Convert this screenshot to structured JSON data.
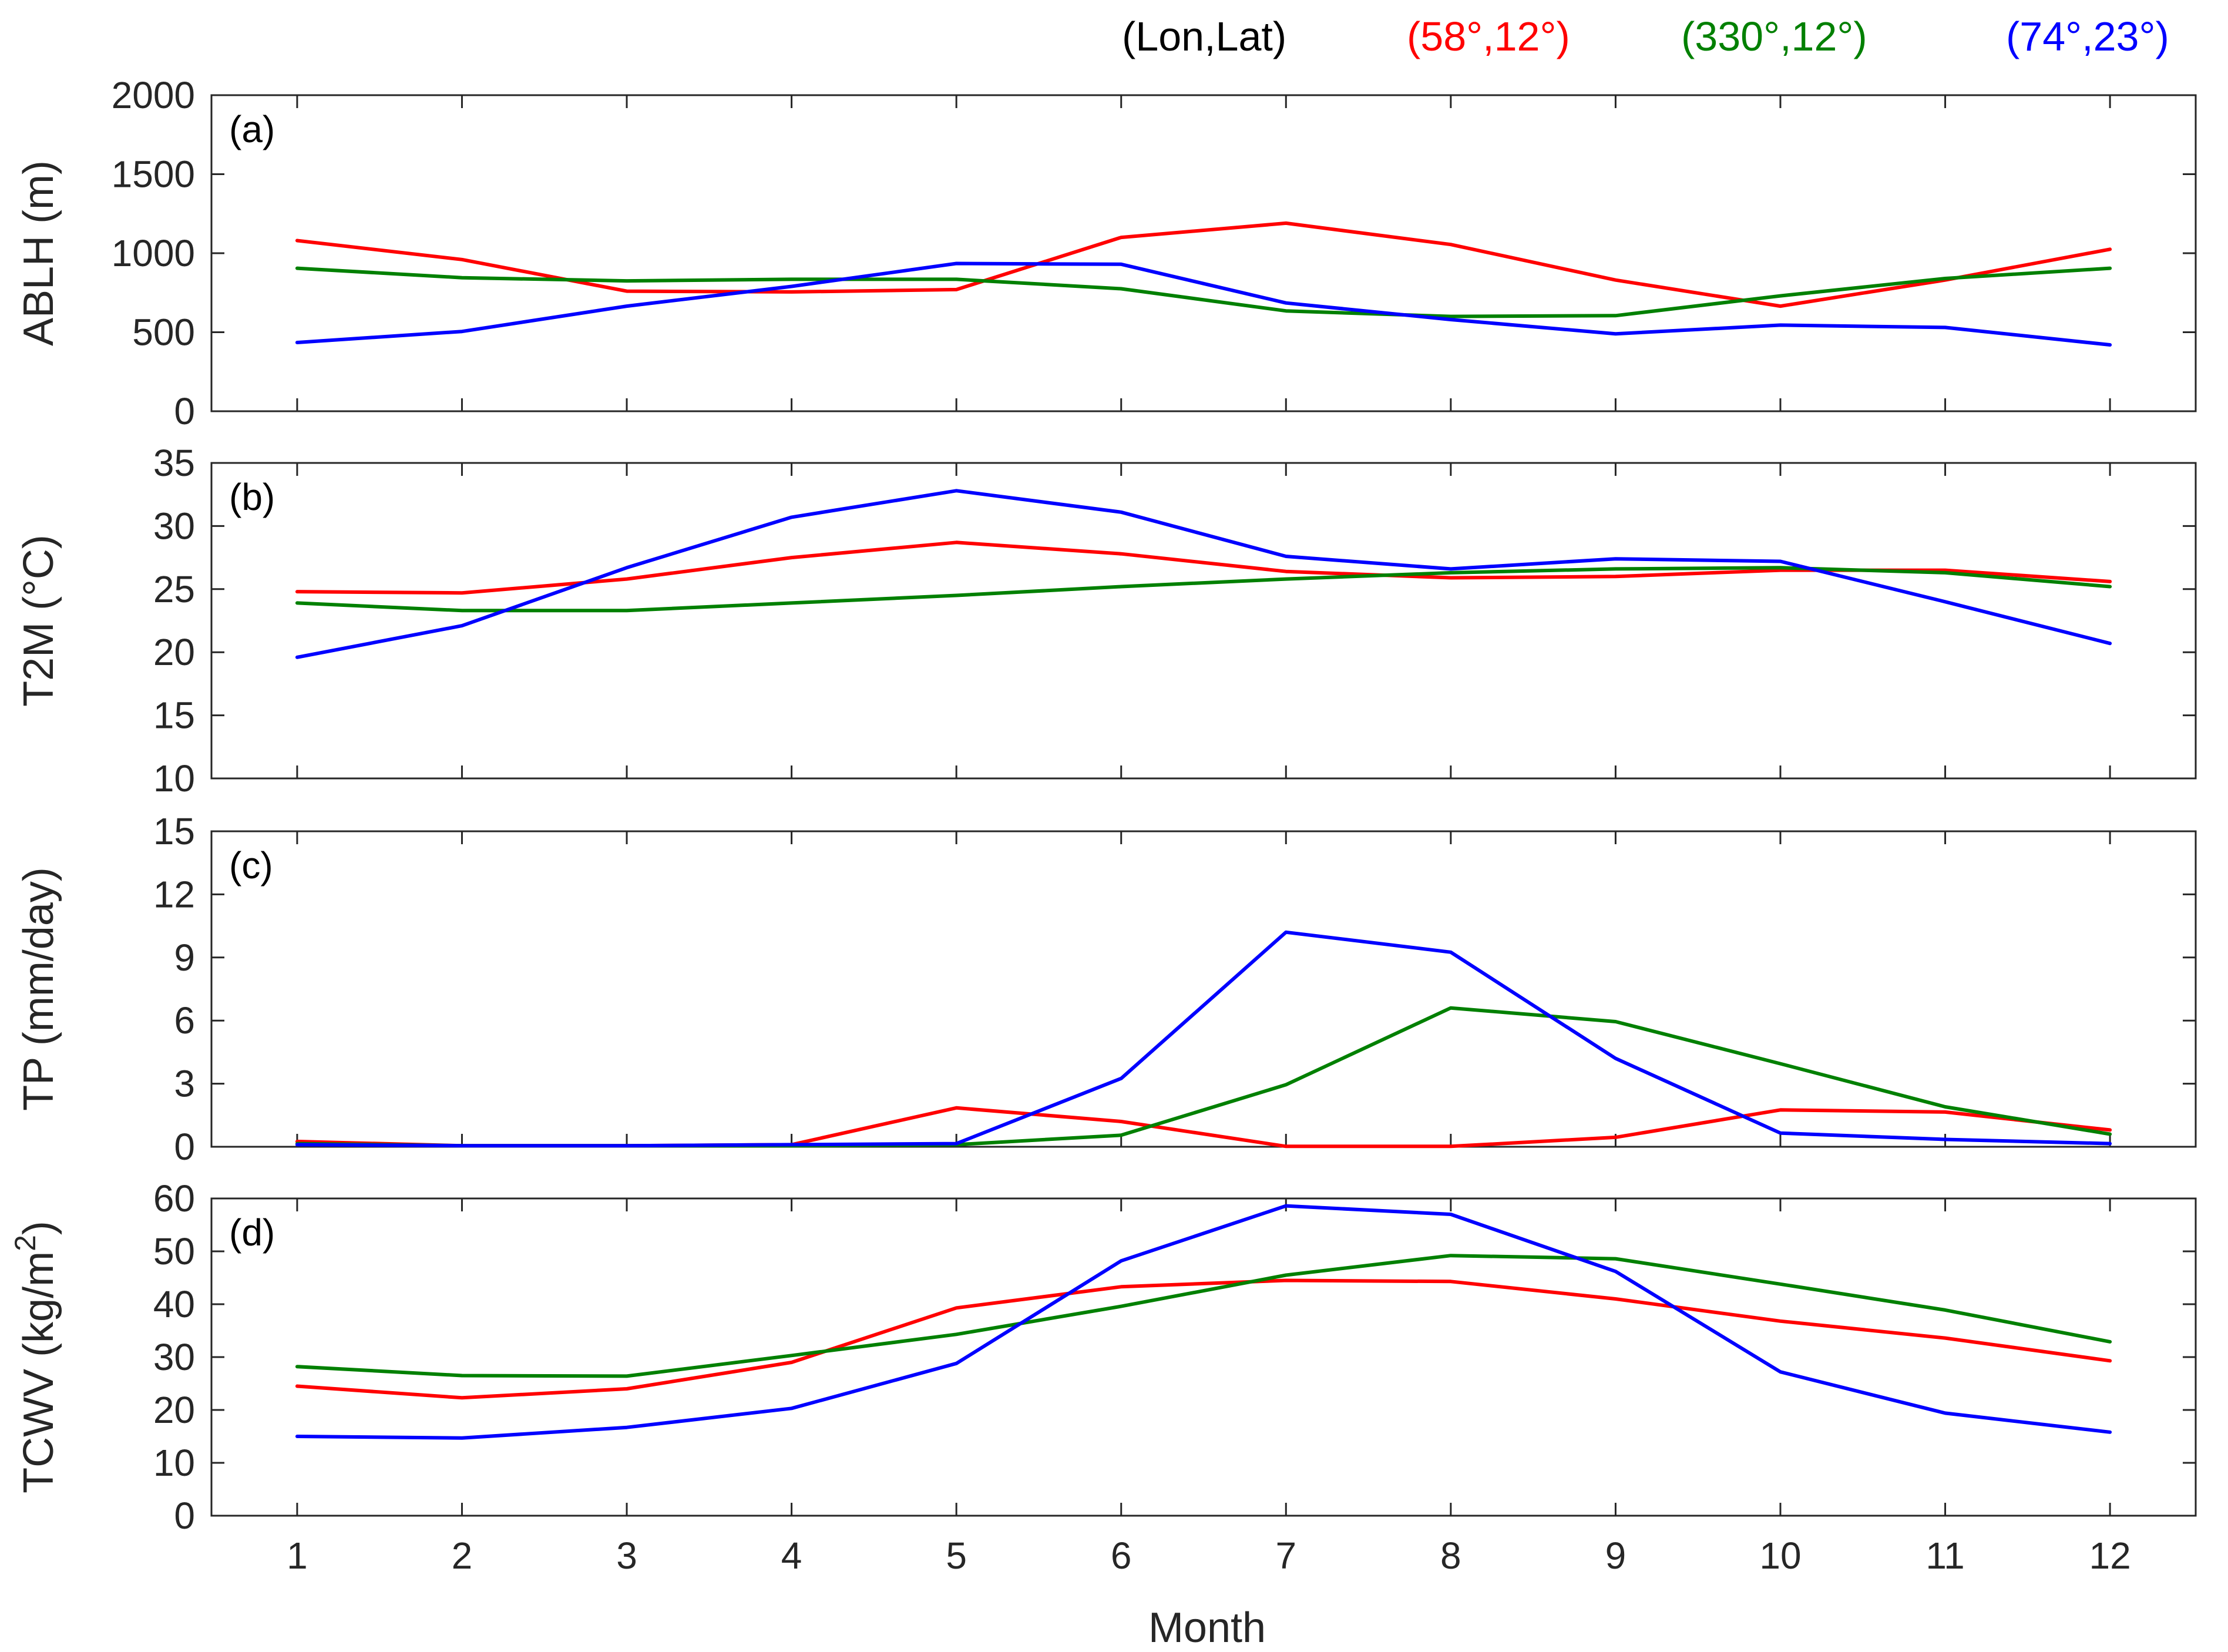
{
  "legend": {
    "header": "(Lon,Lat)",
    "entries": [
      {
        "label": "(58°,12°)",
        "color": "#ff0000"
      },
      {
        "label": "(330°,12°)",
        "color": "#008000"
      },
      {
        "label": "(74°,23°)",
        "color": "#0000ff"
      }
    ]
  },
  "xlabel": "Month",
  "chart_data": [
    {
      "type": "line",
      "tag": "(a)",
      "ylabel": "ABLH (m)",
      "x": [
        1,
        2,
        3,
        4,
        5,
        6,
        7,
        8,
        9,
        10,
        11,
        12
      ],
      "ylim": [
        0,
        2000
      ],
      "yticks": [
        "0",
        "500",
        "1000",
        "1500",
        "2000"
      ],
      "series": [
        {
          "name": "(58°,12°)",
          "color": "#ff0000",
          "values": [
            1080,
            960,
            760,
            755,
            770,
            1100,
            1190,
            1055,
            830,
            665,
            830,
            1025
          ]
        },
        {
          "name": "(330°,12°)",
          "color": "#008000",
          "values": [
            905,
            845,
            825,
            835,
            835,
            775,
            635,
            600,
            605,
            730,
            840,
            905
          ]
        },
        {
          "name": "(74°,23°)",
          "color": "#0000ff",
          "values": [
            435,
            505,
            665,
            790,
            935,
            930,
            685,
            580,
            490,
            545,
            530,
            420
          ]
        }
      ]
    },
    {
      "type": "line",
      "tag": "(b)",
      "ylabel": "T2M (°C)",
      "x": [
        1,
        2,
        3,
        4,
        5,
        6,
        7,
        8,
        9,
        10,
        11,
        12
      ],
      "ylim": [
        10,
        35
      ],
      "yticks": [
        "10",
        "15",
        "20",
        "25",
        "30",
        "35"
      ],
      "series": [
        {
          "name": "(58°,12°)",
          "color": "#ff0000",
          "values": [
            24.8,
            24.7,
            25.8,
            27.5,
            28.7,
            27.8,
            26.4,
            25.9,
            26.0,
            26.5,
            26.5,
            25.6
          ]
        },
        {
          "name": "(330°,12°)",
          "color": "#008000",
          "values": [
            23.9,
            23.3,
            23.3,
            23.9,
            24.5,
            25.2,
            25.8,
            26.3,
            26.6,
            26.7,
            26.3,
            25.2
          ]
        },
        {
          "name": "(74°,23°)",
          "color": "#0000ff",
          "values": [
            19.6,
            22.1,
            26.7,
            30.7,
            32.8,
            31.1,
            27.6,
            26.6,
            27.4,
            27.2,
            24.0,
            20.7
          ]
        }
      ]
    },
    {
      "type": "line",
      "tag": "(c)",
      "ylabel": "TP (mm/day)",
      "x": [
        1,
        2,
        3,
        4,
        5,
        6,
        7,
        8,
        9,
        10,
        11,
        12
      ],
      "ylim": [
        0,
        15
      ],
      "yticks": [
        "0",
        "3",
        "6",
        "9",
        "12",
        "15"
      ],
      "series": [
        {
          "name": "(58°,12°)",
          "color": "#ff0000",
          "values": [
            0.25,
            0.05,
            0.05,
            0.1,
            1.85,
            1.2,
            0.02,
            0.02,
            0.45,
            1.75,
            1.65,
            0.8
          ]
        },
        {
          "name": "(330°,12°)",
          "color": "#008000",
          "values": [
            0.15,
            0.05,
            0.05,
            0.05,
            0.1,
            0.55,
            2.95,
            6.6,
            5.95,
            3.95,
            1.9,
            0.6
          ]
        },
        {
          "name": "(74°,23°)",
          "color": "#0000ff",
          "values": [
            0.1,
            0.05,
            0.05,
            0.1,
            0.15,
            3.25,
            10.2,
            9.25,
            4.2,
            0.65,
            0.35,
            0.15
          ]
        }
      ]
    },
    {
      "type": "line",
      "tag": "(d)",
      "ylabel": "TCWV (kg/m",
      "ylabel_sup": "2",
      "ylabel_end": ")",
      "x": [
        1,
        2,
        3,
        4,
        5,
        6,
        7,
        8,
        9,
        10,
        11,
        12
      ],
      "ylim": [
        0,
        60
      ],
      "yticks": [
        "0",
        "10",
        "20",
        "30",
        "40",
        "50",
        "60"
      ],
      "series": [
        {
          "name": "(58°,12°)",
          "color": "#ff0000",
          "values": [
            24.5,
            22.3,
            24.0,
            29.0,
            39.3,
            43.3,
            44.5,
            44.3,
            41.0,
            36.8,
            33.6,
            29.3
          ]
        },
        {
          "name": "(330°,12°)",
          "color": "#008000",
          "values": [
            28.2,
            26.5,
            26.4,
            30.3,
            34.3,
            39.6,
            45.5,
            49.2,
            48.6,
            43.8,
            38.9,
            32.9
          ]
        },
        {
          "name": "(74°,23°)",
          "color": "#0000ff",
          "values": [
            15.0,
            14.7,
            16.7,
            20.3,
            28.8,
            48.2,
            58.6,
            57.0,
            46.2,
            27.2,
            19.4,
            15.8
          ]
        }
      ]
    }
  ],
  "xticks": [
    "1",
    "2",
    "3",
    "4",
    "5",
    "6",
    "7",
    "8",
    "9",
    "10",
    "11",
    "12"
  ]
}
